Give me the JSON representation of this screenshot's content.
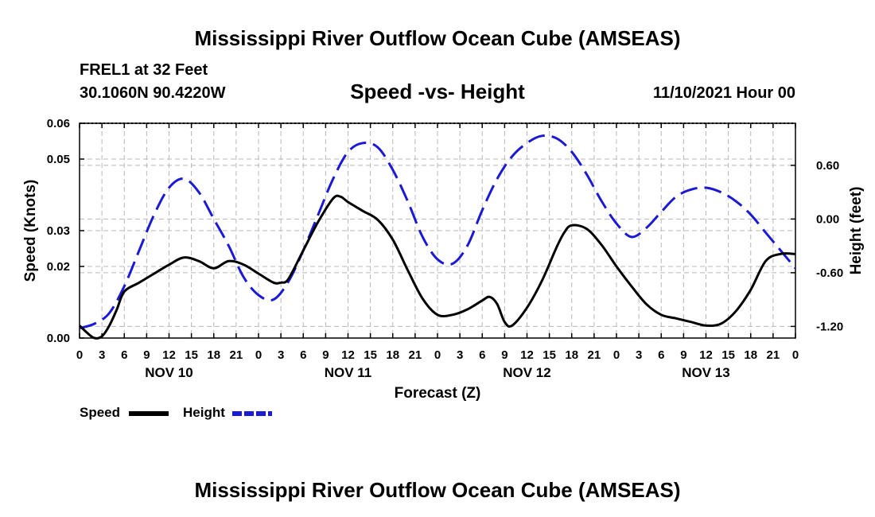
{
  "main_title_top": "Mississippi River Outflow Ocean Cube (AMSEAS)",
  "main_title_bottom": "Mississippi River Outflow Ocean Cube (AMSEAS)",
  "station": "FREL1 at 32 Feet",
  "coords": "30.1060N  90.4220W",
  "run_time": "11/10/2021 Hour 00",
  "colors": {
    "speed": "#000000",
    "height": "#1a1ad6",
    "grid": "#b8b8b8"
  },
  "chart_data": {
    "type": "line",
    "title": "Speed -vs- Height",
    "xlabel": "Forecast (Z)",
    "ylabel": "Speed (Knots)",
    "y2label": "Height (feet)",
    "xlim": [
      0,
      96
    ],
    "ylim": [
      0.0,
      0.06
    ],
    "y2lim": [
      -1.33,
      1.07
    ],
    "grid": true,
    "x_ticks": [
      0,
      3,
      6,
      9,
      12,
      15,
      18,
      21,
      24,
      27,
      30,
      33,
      36,
      39,
      42,
      45,
      48,
      51,
      54,
      57,
      60,
      63,
      66,
      69,
      72,
      75,
      78,
      81,
      84,
      87,
      90,
      93,
      96
    ],
    "x_tick_labels": [
      "0",
      "3",
      "6",
      "9",
      "12",
      "15",
      "18",
      "21",
      "0",
      "3",
      "6",
      "9",
      "12",
      "15",
      "18",
      "21",
      "0",
      "3",
      "6",
      "9",
      "12",
      "15",
      "18",
      "21",
      "0",
      "3",
      "6",
      "9",
      "12",
      "15",
      "18",
      "21",
      "0"
    ],
    "day_labels": [
      {
        "x": 12,
        "label": "NOV 10"
      },
      {
        "x": 36,
        "label": "NOV 11"
      },
      {
        "x": 60,
        "label": "NOV 12"
      },
      {
        "x": 84,
        "label": "NOV 13"
      }
    ],
    "y_ticks": [
      0.0,
      0.02,
      0.03,
      0.05,
      0.06
    ],
    "y_tick_labels": [
      "0.00",
      "0.02",
      "0.03",
      "0.05",
      "0.06"
    ],
    "y2_ticks": [
      -1.2,
      -0.6,
      0.0,
      0.6
    ],
    "y2_tick_labels": [
      "-1.20",
      "-0.60",
      "0.00",
      "0.60"
    ],
    "series": [
      {
        "name": "Speed",
        "axis": "left",
        "style": "solid",
        "x": [
          0,
          1,
          2,
          3,
          4,
          5,
          6,
          8,
          10,
          12,
          14,
          16,
          18,
          20,
          22,
          24,
          26,
          27,
          28,
          30,
          32,
          34,
          35,
          36,
          38,
          40,
          42,
          44,
          46,
          48,
          50,
          52,
          54,
          55,
          56,
          57,
          58,
          60,
          62,
          64,
          65,
          66,
          68,
          70,
          72,
          74,
          76,
          78,
          80,
          82,
          84,
          86,
          88,
          90,
          92,
          94,
          96
        ],
        "values": [
          0.0035,
          0.0015,
          0.0,
          0.0005,
          0.0035,
          0.008,
          0.013,
          0.0155,
          0.018,
          0.0205,
          0.0225,
          0.0215,
          0.0195,
          0.0215,
          0.0205,
          0.018,
          0.0155,
          0.0155,
          0.0165,
          0.0245,
          0.0325,
          0.039,
          0.0395,
          0.038,
          0.0355,
          0.033,
          0.0275,
          0.019,
          0.011,
          0.0065,
          0.0065,
          0.008,
          0.0105,
          0.0115,
          0.0095,
          0.0045,
          0.0035,
          0.0085,
          0.016,
          0.0255,
          0.0295,
          0.0315,
          0.0305,
          0.026,
          0.02,
          0.0145,
          0.0095,
          0.0065,
          0.0055,
          0.0045,
          0.0035,
          0.004,
          0.0075,
          0.0135,
          0.0215,
          0.0235,
          0.0235
        ]
      },
      {
        "name": "Height",
        "axis": "right",
        "style": "dashed",
        "x": [
          0,
          2,
          4,
          6,
          8,
          10,
          12,
          14,
          16,
          18,
          20,
          22,
          24,
          26,
          28,
          30,
          32,
          34,
          36,
          38,
          40,
          42,
          44,
          46,
          48,
          50,
          52,
          54,
          56,
          58,
          60,
          62,
          64,
          66,
          68,
          70,
          72,
          74,
          76,
          78,
          80,
          82,
          84,
          86,
          88,
          90,
          92,
          94,
          96
        ],
        "values": [
          -1.22,
          -1.17,
          -1.05,
          -0.75,
          -0.35,
          0.05,
          0.35,
          0.45,
          0.3,
          0.0,
          -0.3,
          -0.65,
          -0.85,
          -0.9,
          -0.7,
          -0.35,
          0.05,
          0.45,
          0.75,
          0.85,
          0.8,
          0.55,
          0.2,
          -0.2,
          -0.45,
          -0.5,
          -0.3,
          0.1,
          0.45,
          0.7,
          0.85,
          0.93,
          0.9,
          0.75,
          0.5,
          0.2,
          -0.05,
          -0.2,
          -0.1,
          0.08,
          0.25,
          0.33,
          0.35,
          0.3,
          0.2,
          0.05,
          -0.15,
          -0.35,
          -0.55
        ]
      }
    ]
  }
}
